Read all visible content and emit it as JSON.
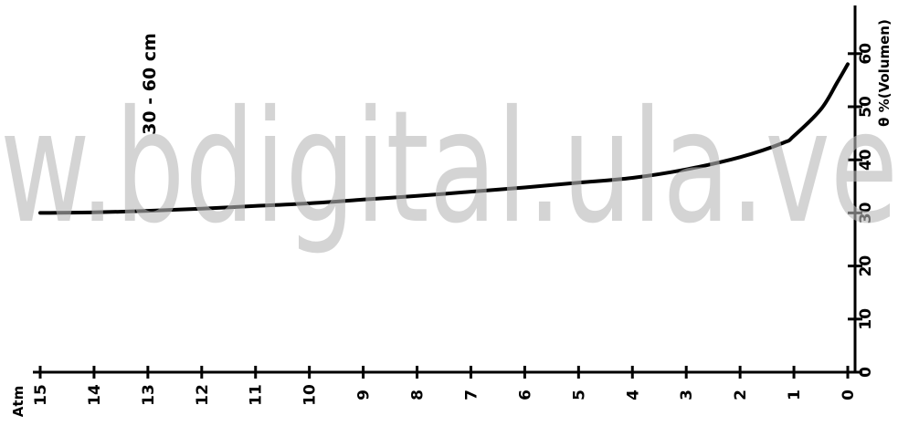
{
  "chart_data": {
    "type": "line",
    "title": "30 - 60 cm",
    "xlabel": "Atm",
    "ylabel": "θ %(Volumen)",
    "x_ticks": [
      15,
      14,
      13,
      12,
      11,
      10,
      9,
      8,
      7,
      6,
      5,
      4,
      3,
      2,
      1,
      0
    ],
    "x_tick_labels": [
      "15",
      "14",
      "13",
      "12",
      "11",
      "10",
      "9",
      "8",
      "7",
      "6",
      "5",
      "4",
      "3",
      "2",
      "1",
      "0"
    ],
    "y_ticks": [
      0,
      10,
      20,
      30,
      40,
      50,
      60
    ],
    "y_tick_labels": [
      "0",
      "10",
      "20",
      "30",
      "40",
      "50",
      "60"
    ],
    "xlim": [
      15,
      0
    ],
    "ylim": [
      0,
      68
    ],
    "x_reversed": true,
    "grid": false,
    "legend": "none",
    "series": [
      {
        "x": [
          15,
          14,
          13,
          12,
          11,
          10,
          9,
          8,
          7,
          6,
          5,
          4,
          3,
          2,
          1.2,
          1,
          0.5,
          0.2,
          0
        ],
        "y": [
          30,
          30.1,
          30.4,
          30.8,
          31.3,
          31.8,
          32.5,
          33.2,
          34.0,
          34.8,
          35.7,
          36.6,
          38.2,
          40.5,
          43.2,
          44.5,
          49.5,
          54.5,
          58
        ]
      }
    ]
  },
  "watermark": "w.bdigital.ula.ve"
}
